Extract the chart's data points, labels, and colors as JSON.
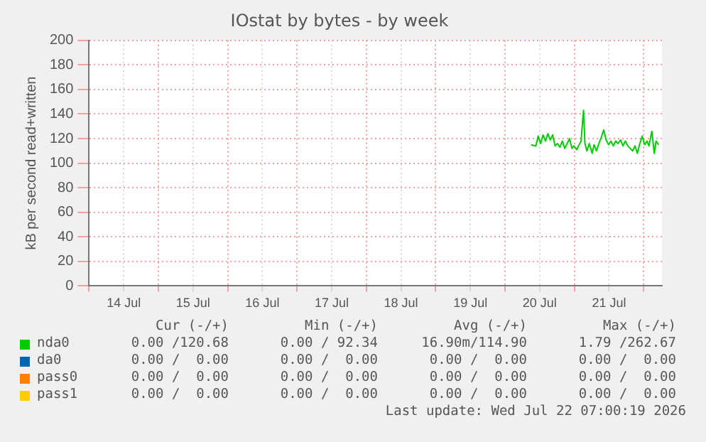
{
  "chart_data": {
    "type": "line",
    "title": "IOstat by bytes - by week",
    "ylabel": "kB per second read+written",
    "xlim": [
      "2026-07-14T00:00",
      "2026-07-22T06:20"
    ],
    "xticks": [
      {
        "value": "2026-07-14T00:00",
        "label": null
      },
      {
        "value": "2026-07-14T12:00",
        "label": "14 Jul"
      },
      {
        "value": "2026-07-15T00:00",
        "label": null
      },
      {
        "value": "2026-07-15T12:00",
        "label": "15 Jul"
      },
      {
        "value": "2026-07-16T00:00",
        "label": null
      },
      {
        "value": "2026-07-16T12:00",
        "label": "16 Jul"
      },
      {
        "value": "2026-07-17T00:00",
        "label": null
      },
      {
        "value": "2026-07-17T12:00",
        "label": "17 Jul"
      },
      {
        "value": "2026-07-18T00:00",
        "label": null
      },
      {
        "value": "2026-07-18T12:00",
        "label": "18 Jul"
      },
      {
        "value": "2026-07-19T00:00",
        "label": null
      },
      {
        "value": "2026-07-19T12:00",
        "label": "19 Jul"
      },
      {
        "value": "2026-07-20T00:00",
        "label": null
      },
      {
        "value": "2026-07-20T12:00",
        "label": "20 Jul"
      },
      {
        "value": "2026-07-21T00:00",
        "label": null
      },
      {
        "value": "2026-07-21T12:00",
        "label": "21 Jul"
      },
      {
        "value": "2026-07-22T00:00",
        "label": null
      }
    ],
    "ylim": [
      0,
      200
    ],
    "yticks": [
      0,
      20,
      40,
      60,
      80,
      100,
      120,
      140,
      160,
      180,
      200
    ],
    "grid": true,
    "legend": "bottom",
    "marker": "none",
    "series": [
      {
        "name": "nda0",
        "color": "#00cc00",
        "x": [
          "2026-07-20T09:00",
          "2026-07-20T10:40",
          "2026-07-20T11:30",
          "2026-07-20T12:20",
          "2026-07-20T13:10",
          "2026-07-20T14:00",
          "2026-07-20T14:50",
          "2026-07-20T15:40",
          "2026-07-20T16:30",
          "2026-07-20T17:20",
          "2026-07-20T18:10",
          "2026-07-20T19:00",
          "2026-07-20T19:50",
          "2026-07-20T20:40",
          "2026-07-20T21:30",
          "2026-07-20T22:20",
          "2026-07-20T23:10",
          "2026-07-20T23:50",
          "2026-07-21T00:50",
          "2026-07-21T01:40",
          "2026-07-21T02:20",
          "2026-07-21T03:10",
          "2026-07-21T03:40",
          "2026-07-21T04:20",
          "2026-07-21T05:10",
          "2026-07-21T06:10",
          "2026-07-21T06:50",
          "2026-07-21T07:40",
          "2026-07-21T08:30",
          "2026-07-21T09:20",
          "2026-07-21T10:10",
          "2026-07-21T11:00",
          "2026-07-21T11:50",
          "2026-07-21T12:40",
          "2026-07-21T13:30",
          "2026-07-21T14:20",
          "2026-07-21T15:10",
          "2026-07-21T16:00",
          "2026-07-21T16:50",
          "2026-07-21T17:40",
          "2026-07-21T18:30",
          "2026-07-21T19:20",
          "2026-07-21T20:10",
          "2026-07-21T21:00",
          "2026-07-21T21:50",
          "2026-07-21T22:40",
          "2026-07-21T23:30",
          "2026-07-22T00:20",
          "2026-07-22T01:10",
          "2026-07-22T01:50",
          "2026-07-22T02:50",
          "2026-07-22T03:40",
          "2026-07-22T04:20",
          "2026-07-22T05:10"
        ],
        "values": [
          115,
          114,
          122,
          116,
          123,
          118,
          124,
          119,
          123,
          114,
          116,
          113,
          118,
          112,
          116,
          120,
          112,
          114,
          111,
          115,
          118,
          143,
          116,
          110,
          116,
          108,
          115,
          110,
          116,
          121,
          127,
          119,
          115,
          118,
          114,
          118,
          116,
          119,
          114,
          118,
          114,
          112,
          110,
          114,
          108,
          116,
          122,
          115,
          118,
          114,
          126,
          108,
          118,
          115
        ]
      },
      {
        "name": "da0",
        "color": "#0066b3"
      },
      {
        "name": "pass0",
        "color": "#ff8000"
      },
      {
        "name": "pass1",
        "color": "#ffcc00"
      }
    ],
    "annotations": [
      "Cur (-/+)",
      "Min (-/+)",
      "Avg (-/+)",
      "Max (-/+)",
      "0.00 /120.68",
      "0.00 / 92.34",
      "16.90m/114.90",
      "1.79 /262.67",
      "0.00 /  0.00",
      "0.00 /  0.00",
      "0.00 /  0.00",
      "0.00 /  0.00",
      "0.00 /  0.00",
      "0.00 /  0.00",
      "0.00 /  0.00",
      "0.00 /  0.00",
      "0.00 /  0.00",
      "0.00 /  0.00",
      "0.00 /  0.00",
      "0.00 /  0.00",
      "Last update: Wed Jul 22 07:00:19 2026"
    ]
  }
}
